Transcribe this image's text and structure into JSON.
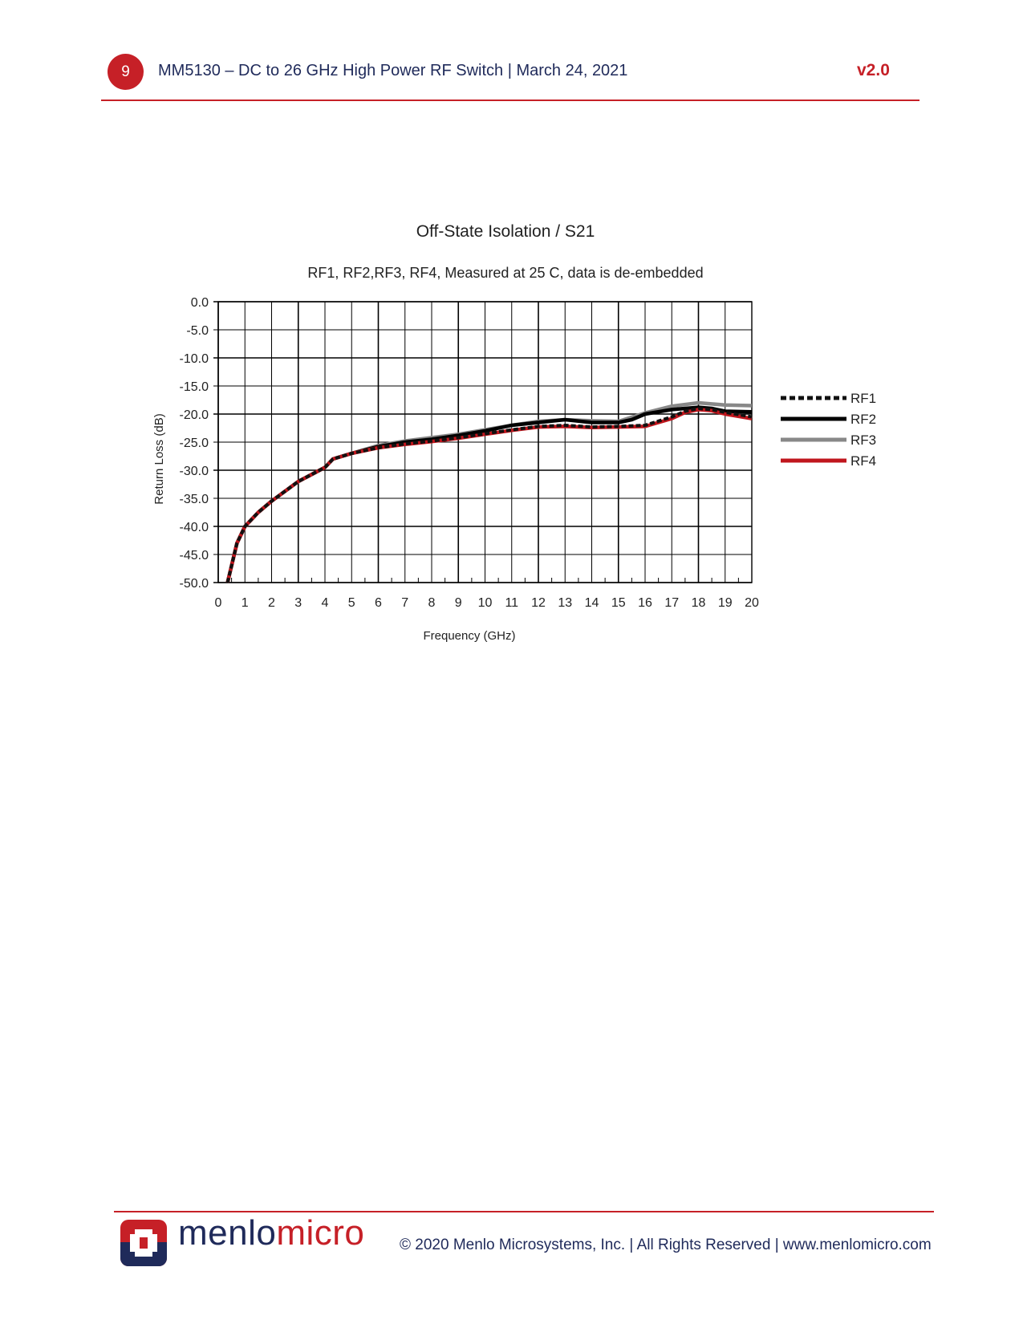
{
  "header": {
    "page_number": "9",
    "title": "MM5130 – DC to 26 GHz High Power RF Switch | March 24, 2021",
    "version": "v2.0"
  },
  "footer": {
    "brand_part1": "menlo",
    "brand_part2": "micro",
    "copyright": "© 2020 Menlo Microsystems, Inc. | All Rights Reserved | www.menlomicro.com"
  },
  "colors": {
    "accent": "#c62027",
    "text": "#1f2a5a",
    "rf1": "#111111",
    "rf2": "#000000",
    "rf3": "#888888",
    "rf4": "#c0161d"
  },
  "chart_data": {
    "type": "line",
    "title": "Off-State Isolation / S21",
    "subtitle": "RF1, RF2,RF3, RF4, Measured at 25 C, data is de-embedded",
    "xlabel": "Frequency (GHz)",
    "ylabel": "Return Loss (dB)",
    "xlim": [
      0,
      20
    ],
    "ylim": [
      -50,
      0
    ],
    "x_ticks": [
      "0",
      "1",
      "2",
      "3",
      "4",
      "5",
      "6",
      "7",
      "8",
      "9",
      "10",
      "11",
      "12",
      "13",
      "14",
      "15",
      "16",
      "17",
      "18",
      "19",
      "20"
    ],
    "y_ticks": [
      "0.0",
      "-5.0",
      "-10.0",
      "-15.0",
      "-20.0",
      "-25.0",
      "-30.0",
      "-35.0",
      "-40.0",
      "-45.0",
      "-50.0"
    ],
    "grid": true,
    "legend_position": "right",
    "series": [
      {
        "name": "RF1",
        "style": "dashed",
        "color": "#111111",
        "x": [
          0.35,
          0.5,
          0.7,
          1,
          1.5,
          2,
          3,
          4,
          4.3,
          5,
          6,
          7,
          8,
          9,
          10,
          11,
          12,
          13,
          14,
          15,
          16,
          17,
          17.5,
          18,
          18.5,
          19,
          20
        ],
        "y": [
          -50,
          -47,
          -43,
          -40,
          -37.5,
          -35.5,
          -32,
          -29.5,
          -28,
          -27,
          -26,
          -25.3,
          -24.8,
          -24.2,
          -23.5,
          -22.8,
          -22.2,
          -22,
          -22.3,
          -22.2,
          -22,
          -20.5,
          -19.5,
          -19,
          -19.2,
          -19.7,
          -20.5
        ]
      },
      {
        "name": "RF2",
        "style": "solid",
        "color": "#000000",
        "x": [
          0.35,
          0.5,
          0.7,
          1,
          1.5,
          2,
          3,
          4,
          4.3,
          5,
          6,
          7,
          8,
          9,
          10,
          11,
          12,
          13,
          14,
          15,
          15.5,
          16,
          17,
          18,
          18.5,
          19,
          20
        ],
        "y": [
          -50,
          -47,
          -43,
          -40,
          -37.5,
          -35.5,
          -32,
          -29.5,
          -28,
          -27,
          -25.8,
          -25,
          -24.5,
          -23.8,
          -23,
          -22,
          -21.5,
          -21,
          -21.5,
          -21.5,
          -21,
          -20,
          -19.2,
          -18.8,
          -19,
          -19.5,
          -19.6
        ]
      },
      {
        "name": "RF3",
        "style": "solid",
        "color": "#888888",
        "x": [
          0.35,
          0.5,
          0.7,
          1,
          1.5,
          2,
          3,
          4,
          4.3,
          5,
          6,
          7,
          8,
          9,
          10,
          11,
          12,
          13,
          14,
          15,
          16,
          17,
          18,
          19,
          20
        ],
        "y": [
          -50,
          -47,
          -43,
          -40,
          -37.5,
          -35.5,
          -32,
          -29.5,
          -28,
          -27,
          -25.6,
          -24.8,
          -24.2,
          -23.6,
          -22.8,
          -22,
          -21.3,
          -21,
          -21.2,
          -21.3,
          -19.8,
          -18.6,
          -18,
          -18.4,
          -18.5
        ]
      },
      {
        "name": "RF4",
        "style": "solid",
        "color": "#c0161d",
        "x": [
          0.35,
          0.5,
          0.7,
          1,
          1.5,
          2,
          3,
          4,
          4.3,
          5,
          6,
          7,
          8,
          9,
          10,
          11,
          12,
          13,
          14,
          15,
          16,
          17,
          17.5,
          18,
          18.5,
          19,
          20
        ],
        "y": [
          -50,
          -47,
          -43,
          -40,
          -37.5,
          -35.5,
          -32,
          -29.5,
          -28,
          -27,
          -26,
          -25.4,
          -24.9,
          -24.3,
          -23.6,
          -22.9,
          -22.3,
          -22.2,
          -22.4,
          -22.3,
          -22.2,
          -20.8,
          -19.7,
          -19.2,
          -19.4,
          -20,
          -20.8
        ]
      }
    ]
  }
}
